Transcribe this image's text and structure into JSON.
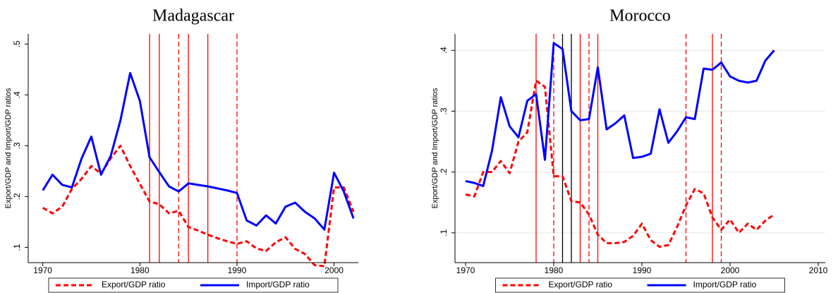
{
  "chart_data": [
    {
      "type": "line",
      "title": "Madagascar",
      "ylabel": "Export/GDP and Import/GDP ratios",
      "x": [
        1970,
        1971,
        1972,
        1973,
        1974,
        1975,
        1976,
        1977,
        1978,
        1979,
        1980,
        1981,
        1982,
        1983,
        1984,
        1985,
        1986,
        1987,
        1988,
        1989,
        1990,
        1991,
        1992,
        1993,
        1994,
        1995,
        1996,
        1997,
        1998,
        1999,
        2000,
        2001,
        2002
      ],
      "series": [
        {
          "name": "Export/GDP ratio",
          "color": "#ff0000",
          "style": "dashed",
          "values": [
            0.178,
            0.167,
            0.18,
            0.215,
            0.235,
            0.26,
            0.245,
            0.275,
            0.3,
            0.26,
            0.225,
            0.19,
            0.185,
            0.167,
            0.172,
            0.14,
            0.133,
            0.125,
            0.118,
            0.112,
            0.107,
            0.112,
            0.098,
            0.093,
            0.11,
            0.12,
            0.097,
            0.087,
            0.065,
            0.063,
            0.218,
            0.218,
            0.17
          ]
        },
        {
          "name": "Import/GDP ratio",
          "color": "#0000ff",
          "style": "solid",
          "values": [
            0.212,
            0.243,
            0.223,
            0.218,
            0.275,
            0.318,
            0.243,
            0.28,
            0.35,
            0.443,
            0.388,
            0.277,
            0.248,
            0.22,
            0.21,
            0.226,
            0.223,
            0.22,
            0.216,
            0.212,
            0.207,
            0.153,
            0.143,
            0.163,
            0.147,
            0.18,
            0.188,
            0.17,
            0.157,
            0.135,
            0.247,
            0.21,
            0.157
          ]
        }
      ],
      "vlines": [
        {
          "x": 1981,
          "color": "#ff0000",
          "style": "solid"
        },
        {
          "x": 1982,
          "color": "#ff0000",
          "style": "solid"
        },
        {
          "x": 1984,
          "color": "#ff0000",
          "style": "dashed"
        },
        {
          "x": 1985,
          "color": "#ff0000",
          "style": "solid"
        },
        {
          "x": 1987,
          "color": "#ff0000",
          "style": "solid"
        },
        {
          "x": 1990,
          "color": "#ff0000",
          "style": "dashed"
        }
      ],
      "xlim": [
        1968.5,
        2002.5
      ],
      "xticks": [
        1970,
        1980,
        1990,
        2000
      ],
      "ylim": [
        0.07,
        0.52
      ],
      "yticks": [
        {
          "value": 0.1,
          "label": ".1"
        },
        {
          "value": 0.2,
          "label": ".2"
        },
        {
          "value": 0.3,
          "label": ".3"
        },
        {
          "value": 0.4,
          "label": ".4"
        },
        {
          "value": 0.5,
          "label": ".5"
        }
      ],
      "grid": false,
      "legend": "bottom"
    },
    {
      "type": "line",
      "title": "Morocco",
      "ylabel": "Export/GDP and Import/GDP ratios",
      "x": [
        1970,
        1971,
        1972,
        1973,
        1974,
        1975,
        1976,
        1977,
        1978,
        1979,
        1980,
        1981,
        1982,
        1983,
        1984,
        1985,
        1986,
        1987,
        1988,
        1989,
        1990,
        1991,
        1992,
        1993,
        1994,
        1995,
        1996,
        1997,
        1998,
        1999,
        2000,
        2001,
        2002,
        2003,
        2004,
        2005
      ],
      "series": [
        {
          "name": "Export/GDP ratio",
          "color": "#ff0000",
          "style": "dashed",
          "values": [
            0.163,
            0.16,
            0.2,
            0.2,
            0.218,
            0.198,
            0.25,
            0.265,
            0.35,
            0.34,
            0.193,
            0.193,
            0.152,
            0.15,
            0.13,
            0.097,
            0.083,
            0.083,
            0.085,
            0.095,
            0.115,
            0.088,
            0.077,
            0.08,
            0.11,
            0.145,
            0.172,
            0.165,
            0.125,
            0.105,
            0.122,
            0.1,
            0.115,
            0.105,
            0.12,
            0.13
          ]
        },
        {
          "name": "Import/GDP ratio",
          "color": "#0000ff",
          "style": "solid",
          "values": [
            0.185,
            0.182,
            0.177,
            0.235,
            0.323,
            0.275,
            0.257,
            0.317,
            0.328,
            0.22,
            0.412,
            0.402,
            0.3,
            0.285,
            0.287,
            0.372,
            0.27,
            0.28,
            0.293,
            0.223,
            0.225,
            0.23,
            0.303,
            0.248,
            0.267,
            0.29,
            0.287,
            0.37,
            0.368,
            0.38,
            0.357,
            0.35,
            0.347,
            0.35,
            0.383,
            0.4
          ]
        }
      ],
      "vlines": [
        {
          "x": 1978,
          "color": "#ff0000",
          "style": "solid"
        },
        {
          "x": 1980,
          "color": "#ff0000",
          "style": "dashed"
        },
        {
          "x": 1981,
          "color": "#000000",
          "style": "solid"
        },
        {
          "x": 1982,
          "color": "#000000",
          "style": "solid"
        },
        {
          "x": 1983,
          "color": "#ff0000",
          "style": "solid"
        },
        {
          "x": 1984,
          "color": "#ff0000",
          "style": "dashed"
        },
        {
          "x": 1985,
          "color": "#ff0000",
          "style": "solid"
        },
        {
          "x": 1995,
          "color": "#ff0000",
          "style": "dashed"
        },
        {
          "x": 1998,
          "color": "#ff0000",
          "style": "solid"
        },
        {
          "x": 1999,
          "color": "#ff0000",
          "style": "dashed"
        }
      ],
      "xlim": [
        1968.8,
        2010.8
      ],
      "xticks": [
        1970,
        1980,
        1990,
        2000,
        2010
      ],
      "ylim": [
        0.051,
        0.427
      ],
      "yticks": [
        {
          "value": 0.1,
          "label": ".1"
        },
        {
          "value": 0.2,
          "label": ".2"
        },
        {
          "value": 0.3,
          "label": ".3"
        },
        {
          "value": 0.4,
          "label": ".4"
        }
      ],
      "grid": true,
      "legend": "bottom"
    }
  ]
}
